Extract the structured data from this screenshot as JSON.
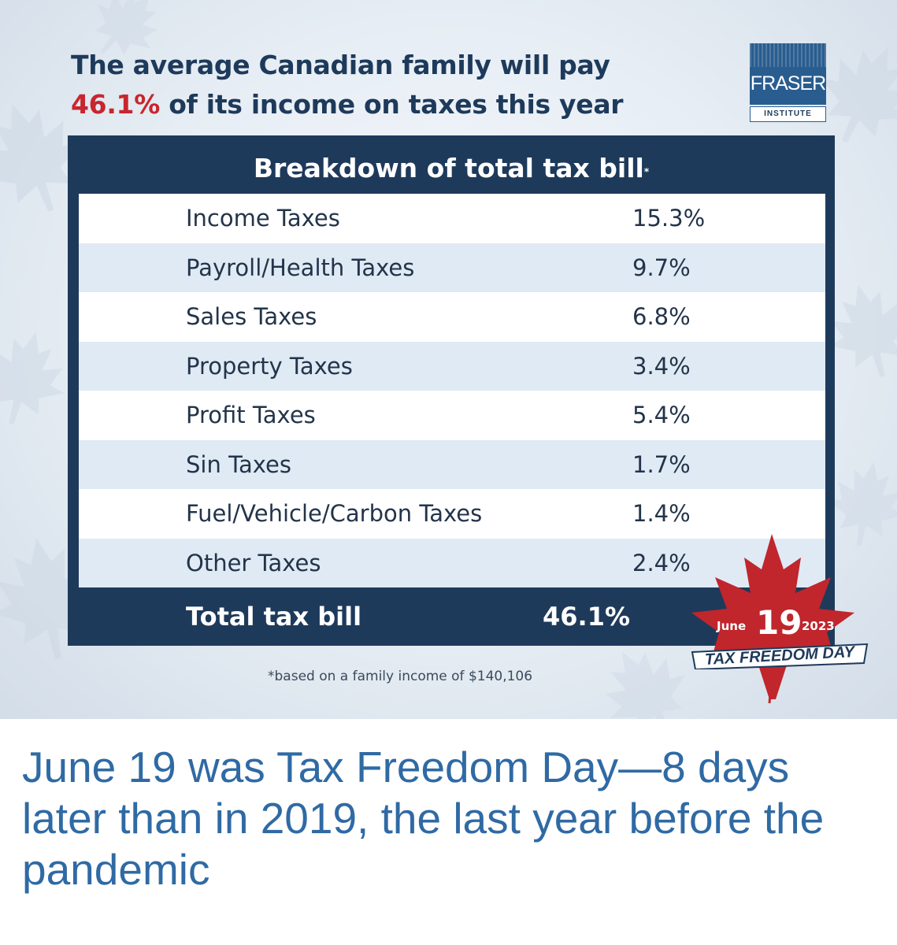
{
  "headline": {
    "line1": "The average Canadian family will pay",
    "pct": "46.1%",
    "line2_rest": " of its income on taxes this year"
  },
  "logo": {
    "word": "FRASER",
    "sub": "INSTITUTE"
  },
  "table": {
    "title": "Breakdown of total tax bill",
    "title_mark": "*",
    "rows": [
      {
        "label": "Income Taxes",
        "value": "15.3%"
      },
      {
        "label": "Payroll/Health Taxes",
        "value": "9.7%"
      },
      {
        "label": "Sales Taxes",
        "value": "6.8%"
      },
      {
        "label": "Property Taxes",
        "value": "3.4%"
      },
      {
        "label": "Profit Taxes",
        "value": "5.4%"
      },
      {
        "label": "Sin Taxes",
        "value": "1.7%"
      },
      {
        "label": "Fuel/Vehicle/Carbon Taxes",
        "value": "1.4%"
      },
      {
        "label": "Other Taxes",
        "value": "2.4%"
      }
    ],
    "total_label": "Total tax bill",
    "total_value": "46.1%"
  },
  "footnote": "*based on a family income of $140,106",
  "badge": {
    "month": "June",
    "day": "19",
    "year": "2023",
    "banner": "TAX FREEDOM DAY"
  },
  "caption": "June 19 was Tax Freedom Day—8 days later than in 2019, the last year before the pandemic",
  "colors": {
    "navy": "#1e3a5b",
    "red": "#c8262e",
    "maple": "#c0262c",
    "caption_blue": "#2f6aa4",
    "stripe": "#dfeaf5"
  }
}
